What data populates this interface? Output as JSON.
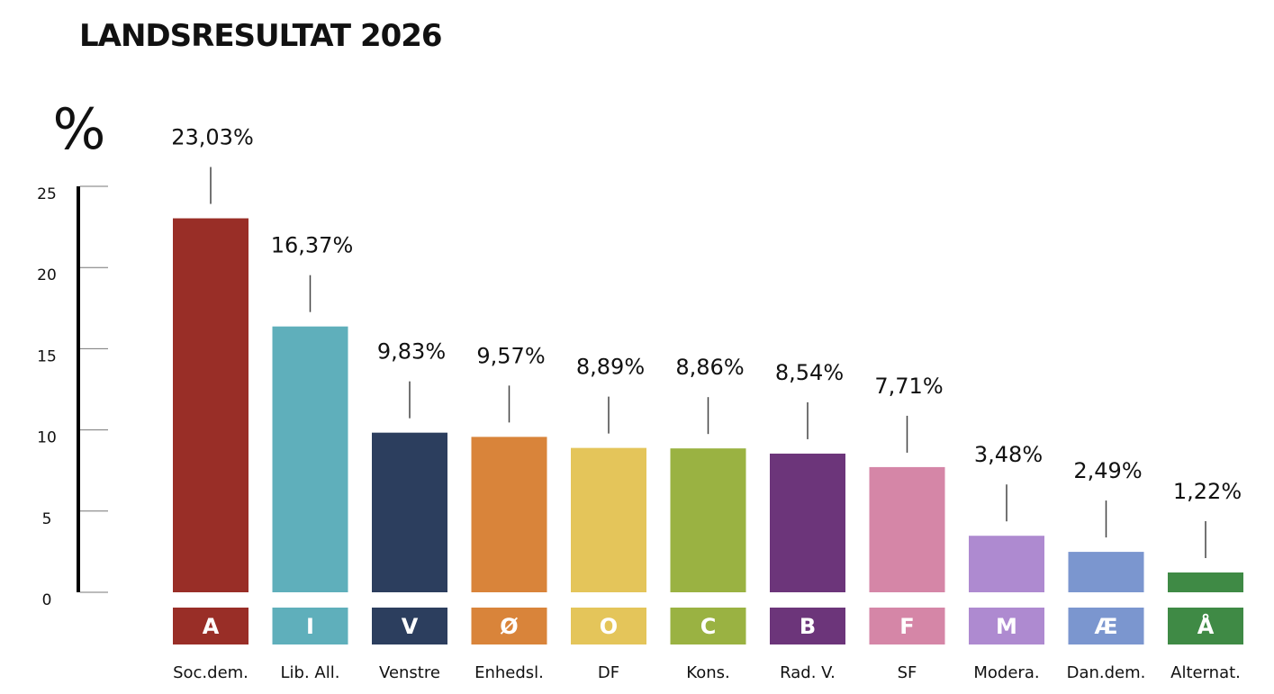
{
  "chart_data": {
    "type": "bar",
    "title": "LANDSRESULTAT 2026",
    "ylabel": "%",
    "ylim": [
      0,
      25
    ],
    "yticks": [
      0,
      5,
      10,
      15,
      20,
      25
    ],
    "grid": false,
    "categories": [
      "Soc.dem.",
      "Lib. All.",
      "Venstre",
      "Enhedsl.",
      "DF",
      "Kons.",
      "Rad. V.",
      "SF",
      "Modera.",
      "Dan.dem.",
      "Alternat."
    ],
    "letters": [
      "A",
      "I",
      "V",
      "Ø",
      "O",
      "C",
      "B",
      "F",
      "M",
      "Æ",
      "Å"
    ],
    "values": [
      23.03,
      16.37,
      9.83,
      9.57,
      8.89,
      8.86,
      8.54,
      7.71,
      3.48,
      2.49,
      1.22
    ],
    "value_labels": [
      "23,03%",
      "16,37%",
      "9,83%",
      "9,57%",
      "8,89%",
      "8,86%",
      "8,54%",
      "7,71%",
      "3,48%",
      "2,49%",
      "1,22%"
    ],
    "colors": [
      "#992e27",
      "#5fafbb",
      "#2c3e5e",
      "#d9843a",
      "#e4c55a",
      "#9ab242",
      "#6c357a",
      "#d586a7",
      "#ae8ad0",
      "#7b96cf",
      "#3f8a45"
    ]
  }
}
